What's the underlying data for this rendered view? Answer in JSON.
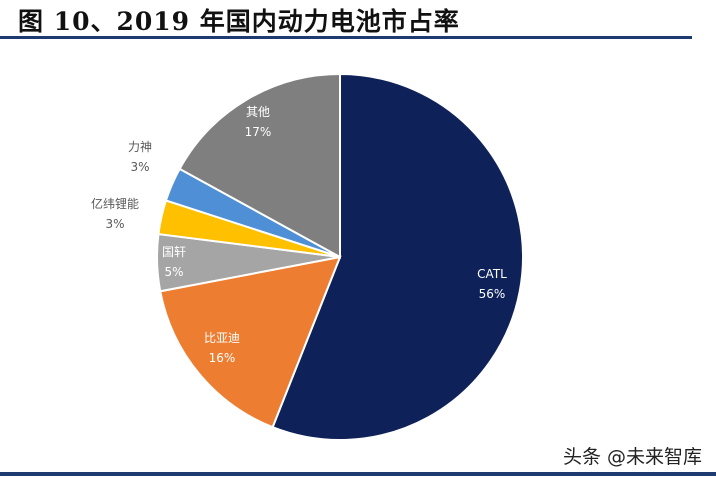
{
  "chart_data": {
    "type": "pie",
    "title": "图 10、2019 年国内动力电池市占率",
    "start": "12 o'clock, clockwise",
    "slices": [
      {
        "label": "CATL",
        "value": 56,
        "value_label": "56%",
        "color": "#0e2158"
      },
      {
        "label": "比亚迪",
        "value": 16,
        "value_label": "16%",
        "color": "#ed7d31"
      },
      {
        "label": "国轩",
        "value": 5,
        "value_label": "5%",
        "color": "#a5a5a5"
      },
      {
        "label": "亿纬锂能",
        "value": 3,
        "value_label": "3%",
        "color": "#ffc000"
      },
      {
        "label": "力神",
        "value": 3,
        "value_label": "3%",
        "color": "#4f8fd6"
      },
      {
        "label": "其他",
        "value": 17,
        "value_label": "17%",
        "color": "#7f7f7f"
      }
    ]
  },
  "watermark": "头条 @未来智库"
}
